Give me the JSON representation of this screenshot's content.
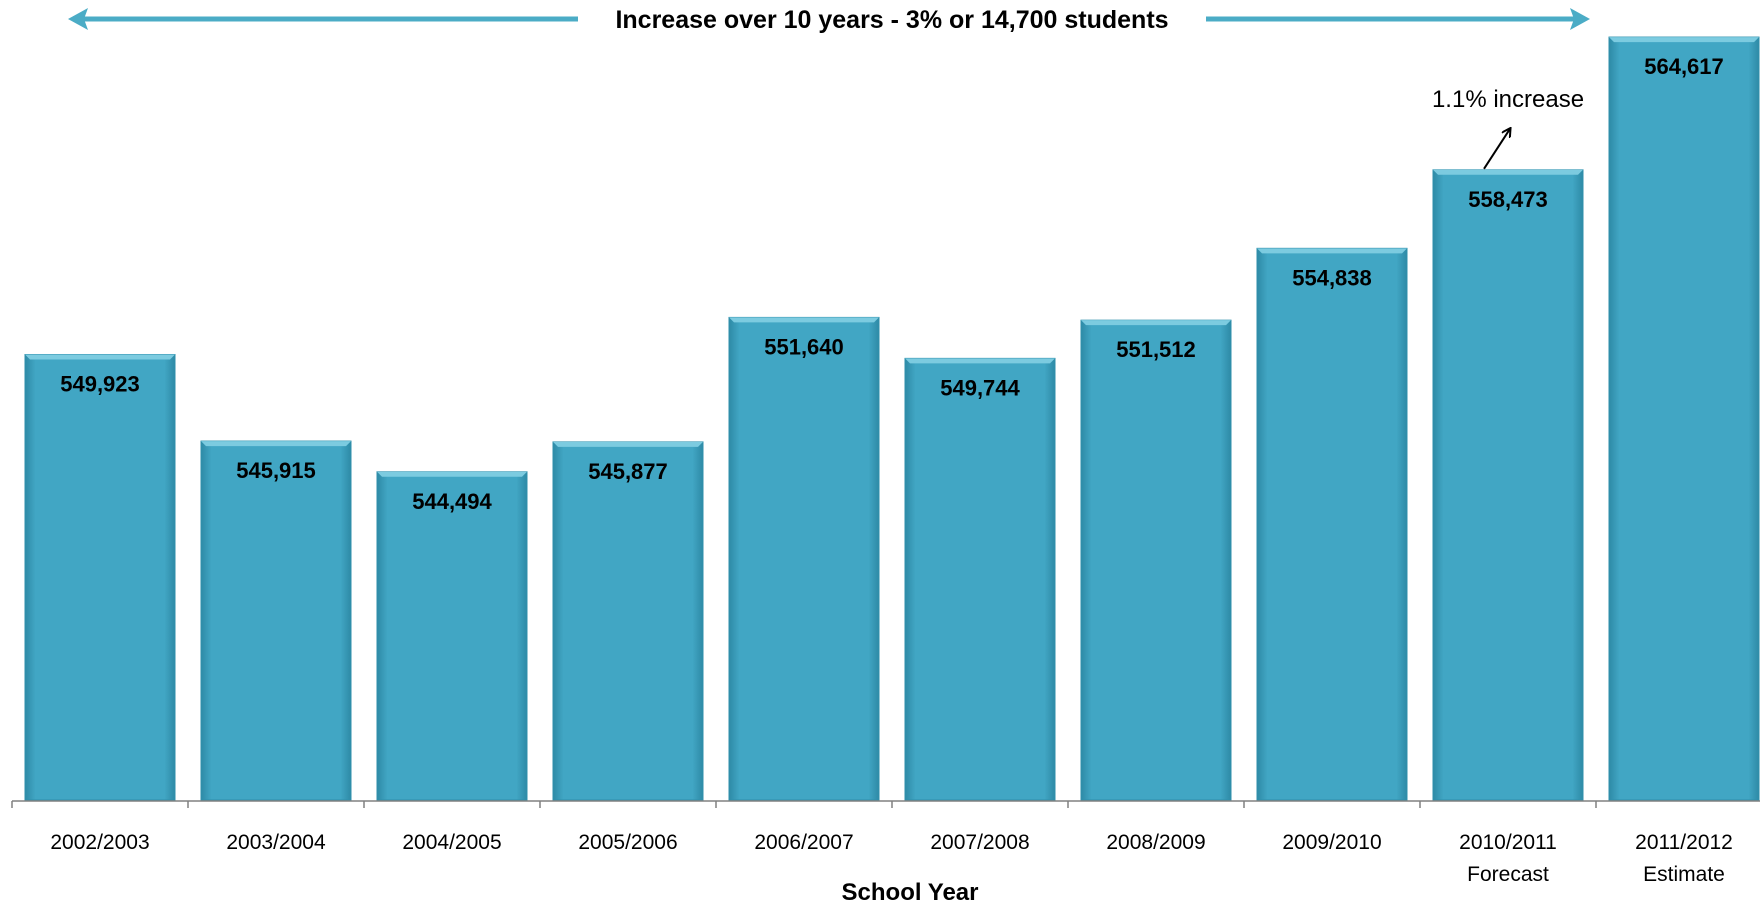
{
  "chart_data": {
    "type": "bar",
    "categories": [
      "2002/2003",
      "2003/2004",
      "2004/2005",
      "2005/2006",
      "2006/2007",
      "2007/2008",
      "2008/2009",
      "2009/2010",
      "2010/2011",
      "2011/2012"
    ],
    "category_sublabels": [
      "",
      "",
      "",
      "",
      "",
      "",
      "",
      "",
      "Forecast",
      "Estimate"
    ],
    "values": [
      549923,
      545915,
      544494,
      545877,
      551640,
      549744,
      551512,
      554838,
      558473,
      564617
    ],
    "data_labels": [
      "549,923",
      "545,915",
      "544,494",
      "545,877",
      "551,640",
      "549,744",
      "551,512",
      "554,838",
      "558,473",
      "564,617"
    ],
    "title": "",
    "xlabel": "School Year",
    "ylabel": "",
    "ylim": [
      529300,
      565500
    ],
    "grid": false,
    "legend": "none",
    "bar_color": "#41A6C4",
    "arrow_color": "#4BACC6",
    "headline_annotation": "Increase over 10 years - 3% or 14,700 students",
    "bar_annotation": {
      "text": "1.1% increase",
      "category": "2010/2011"
    }
  }
}
